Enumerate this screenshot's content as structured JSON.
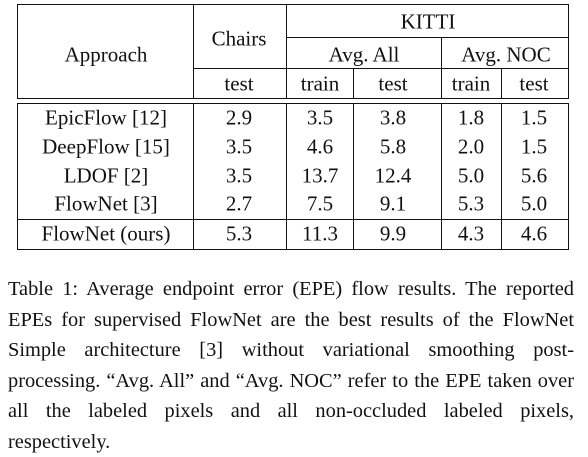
{
  "table": {
    "header": {
      "approach": "Approach",
      "chairs": "Chairs",
      "kitti": "KITTI",
      "avg_all": "Avg. All",
      "avg_noc": "Avg. NOC",
      "subheads": [
        "test",
        "train",
        "test",
        "train",
        "test"
      ]
    },
    "rows": [
      [
        "EpicFlow [12]",
        "2.9",
        "3.5",
        "3.8",
        "1.8",
        "1.5"
      ],
      [
        "DeepFlow [15]",
        "3.5",
        "4.6",
        "5.8",
        "2.0",
        "1.5"
      ],
      [
        "LDOF [2]",
        "3.5",
        "13.7",
        "12.4",
        "5.0",
        "5.6"
      ],
      [
        "FlowNet [3]",
        "2.7",
        "7.5",
        "9.1",
        "5.3",
        "5.0"
      ]
    ],
    "ours_row": [
      "FlowNet (ours)",
      "5.3",
      "11.3",
      "9.9",
      "4.3",
      "4.6"
    ]
  },
  "caption": "Table 1: Average endpoint error (EPE) flow results. The reported EPEs for supervised FlowNet are the best results of the FlowNet Simple architecture [3] without variational smoothing post-processing. “Avg. All” and “Avg. NOC” refer to the EPE taken over all the labeled pixels and all non-occluded labeled pixels, respectively."
}
